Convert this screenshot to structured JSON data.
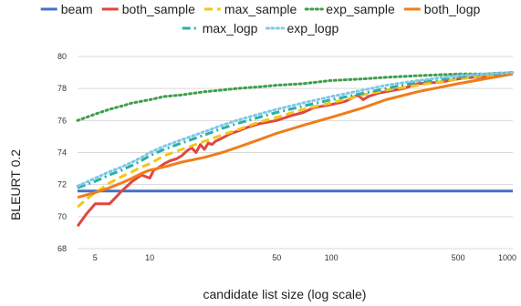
{
  "chart_data": {
    "type": "line",
    "title": "",
    "xlabel": "candidate list size (log scale)",
    "ylabel": "BLEURT 0.2",
    "x_scale": "log",
    "xlim": [
      4,
      1000
    ],
    "ylim": [
      68,
      80
    ],
    "x_ticks": [
      5,
      10,
      50,
      100,
      500,
      1000
    ],
    "y_ticks": [
      68,
      70,
      72,
      74,
      76,
      78,
      80
    ],
    "grid": "horizontal",
    "legend_position": "top",
    "series": [
      {
        "name": "beam",
        "color": "#4472C4",
        "style": "solid",
        "x": [
          4,
          1000
        ],
        "y": [
          71.6,
          71.6
        ]
      },
      {
        "name": "both_sample",
        "color": "#E0473E",
        "style": "solid",
        "x": [
          4,
          4.5,
          5,
          5.5,
          6,
          6.5,
          7,
          7.5,
          8,
          8.5,
          9,
          9.5,
          10,
          10.5,
          11,
          12,
          13,
          14,
          15,
          16,
          17,
          18,
          19,
          20,
          21,
          22,
          23,
          24,
          25,
          26,
          28,
          30,
          35,
          40,
          50,
          60,
          70,
          80,
          100,
          120,
          140,
          150,
          160,
          180,
          200,
          250,
          300,
          400,
          500,
          600,
          700,
          800,
          900,
          1000
        ],
        "y": [
          69.4,
          70.2,
          70.8,
          70.8,
          70.8,
          71.2,
          71.6,
          71.9,
          72.2,
          72.4,
          72.6,
          72.5,
          72.4,
          72.9,
          73.0,
          73.3,
          73.5,
          73.6,
          73.8,
          74.1,
          74.3,
          74.0,
          74.5,
          74.2,
          74.6,
          74.5,
          74.7,
          74.8,
          74.9,
          75.0,
          75.2,
          75.3,
          75.6,
          75.8,
          76.0,
          76.3,
          76.5,
          76.8,
          77.0,
          77.2,
          77.6,
          77.3,
          77.5,
          77.7,
          77.8,
          78.0,
          78.3,
          78.4,
          78.6,
          78.7,
          78.7,
          78.8,
          78.9,
          78.9
        ]
      },
      {
        "name": "max_sample",
        "color": "#F5C518",
        "style": "dash",
        "x": [
          4,
          4.5,
          5,
          5.5,
          6,
          7,
          8,
          9,
          10,
          12,
          15,
          20,
          25,
          30,
          40,
          50,
          70,
          100,
          150,
          200,
          300,
          500,
          700,
          1000
        ],
        "y": [
          70.6,
          71.1,
          71.5,
          71.8,
          72.1,
          72.5,
          72.8,
          73.1,
          73.3,
          73.8,
          74.2,
          74.7,
          75.1,
          75.4,
          75.9,
          76.2,
          76.7,
          77.1,
          77.6,
          77.9,
          78.2,
          78.6,
          78.8,
          78.9
        ]
      },
      {
        "name": "exp_sample",
        "color": "#3E9E4A",
        "style": "dot",
        "x": [
          4,
          5,
          6,
          7,
          8,
          9,
          10,
          12,
          15,
          20,
          25,
          30,
          40,
          50,
          70,
          100,
          150,
          200,
          300,
          500,
          700,
          1000
        ],
        "y": [
          76.0,
          76.4,
          76.7,
          76.9,
          77.1,
          77.2,
          77.3,
          77.5,
          77.6,
          77.8,
          77.9,
          78.0,
          78.1,
          78.2,
          78.3,
          78.5,
          78.6,
          78.7,
          78.8,
          78.9,
          78.9,
          79.0
        ]
      },
      {
        "name": "both_logp",
        "color": "#F07D1A",
        "style": "solid",
        "x": [
          4,
          5,
          6,
          7,
          8,
          9,
          10,
          12,
          15,
          20,
          25,
          30,
          40,
          50,
          70,
          100,
          150,
          200,
          300,
          500,
          700,
          1000
        ],
        "y": [
          71.2,
          71.5,
          71.8,
          72.1,
          72.4,
          72.7,
          72.9,
          73.1,
          73.4,
          73.7,
          74.0,
          74.3,
          74.8,
          75.2,
          75.7,
          76.2,
          76.8,
          77.3,
          77.8,
          78.3,
          78.6,
          78.9
        ]
      },
      {
        "name": "max_logp",
        "color": "#2BB0A6",
        "style": "dashdot",
        "x": [
          4,
          5,
          6,
          7,
          8,
          9,
          10,
          12,
          15,
          20,
          25,
          30,
          40,
          50,
          70,
          100,
          150,
          200,
          300,
          500,
          700,
          1000
        ],
        "y": [
          71.8,
          72.2,
          72.6,
          72.9,
          73.2,
          73.5,
          73.8,
          74.2,
          74.6,
          75.1,
          75.5,
          75.8,
          76.2,
          76.5,
          76.9,
          77.3,
          77.7,
          78.0,
          78.4,
          78.7,
          78.9,
          79.0
        ]
      },
      {
        "name": "exp_logp",
        "color": "#7FC8E8",
        "style": "dot",
        "x": [
          4,
          5,
          6,
          7,
          8,
          9,
          10,
          12,
          15,
          20,
          25,
          30,
          40,
          50,
          70,
          100,
          150,
          200,
          300,
          500,
          700,
          1000
        ],
        "y": [
          71.9,
          72.4,
          72.8,
          73.1,
          73.4,
          73.7,
          74.0,
          74.4,
          74.8,
          75.3,
          75.7,
          76.0,
          76.4,
          76.7,
          77.1,
          77.5,
          77.9,
          78.2,
          78.5,
          78.8,
          78.9,
          79.0
        ]
      }
    ]
  }
}
